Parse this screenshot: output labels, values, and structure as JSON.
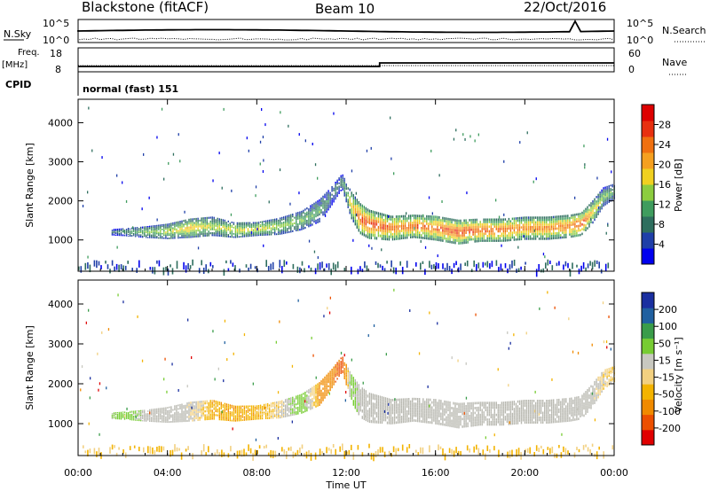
{
  "header": {
    "station_title": "Blackstone (fitACF)",
    "beam": "Beam 10",
    "date": "22/Oct/2016"
  },
  "top_panels": {
    "nsky_label": "N.Sky",
    "nsky_ticks": [
      "10^5",
      "10^0"
    ],
    "nsearch_label": "N.Search",
    "nsearch_ticks": [
      "10^5",
      "10^0"
    ],
    "freq_label": "Freq.",
    "freq_unit": "[MHz]",
    "freq_ticks": [
      "18",
      "8"
    ],
    "nave_label": "Nave",
    "nave_ticks": [
      "60",
      "0"
    ],
    "cpid_label": "CPID",
    "cpid_value": "normal (fast) 151"
  },
  "colors": {
    "power_scale": [
      "#0000ee",
      "#1f3fa8",
      "#2e6e5e",
      "#3f9c5e",
      "#8ccc3f",
      "#f0d020",
      "#f5a020",
      "#f07010",
      "#e83010",
      "#dd0000"
    ],
    "velocity_scale": [
      "#e00000",
      "#ec4f00",
      "#f08a00",
      "#f3b300",
      "#f2d080",
      "#c8c8c0",
      "#77cc33",
      "#3a9c4a",
      "#2060a0",
      "#1a2fa0"
    ],
    "ground_scatter": "#b8b8b0"
  },
  "chart_data": [
    {
      "type": "heatmap",
      "panel": "power",
      "xlabel": "Time UT",
      "ylabel": "Slant Range [km]",
      "x_ticks": [
        "00:00",
        "04:00",
        "08:00",
        "12:00",
        "16:00",
        "20:00",
        "00:00"
      ],
      "y_ticks": [
        "1000",
        "2000",
        "3000",
        "4000"
      ],
      "ylim": [
        200,
        4600
      ],
      "colorbar_label": "Power [dB]",
      "colorbar_ticks": [
        "4",
        "8",
        "12",
        "16",
        "20",
        "24",
        "28"
      ],
      "scatter_band": {
        "hours": [
          1.5,
          2,
          3,
          4,
          5,
          6,
          7,
          8,
          9,
          10,
          10.8,
          11.3,
          11.8,
          12.2,
          12.6,
          13,
          14,
          15,
          16,
          17,
          18,
          19,
          20,
          21,
          22,
          22.5,
          23,
          23.5,
          24
        ],
        "center": [
          1200,
          1200,
          1200,
          1220,
          1300,
          1350,
          1250,
          1280,
          1350,
          1500,
          1750,
          2100,
          2500,
          1900,
          1550,
          1400,
          1300,
          1350,
          1300,
          1200,
          1250,
          1250,
          1300,
          1300,
          1350,
          1400,
          1700,
          2100,
          2250
        ],
        "half_width": [
          80,
          100,
          150,
          200,
          250,
          250,
          200,
          180,
          220,
          250,
          300,
          250,
          200,
          350,
          400,
          380,
          320,
          300,
          320,
          320,
          300,
          300,
          300,
          300,
          300,
          300,
          300,
          250,
          200
        ],
        "peak_power_db": [
          8,
          10,
          14,
          16,
          20,
          16,
          18,
          18,
          16,
          14,
          12,
          8,
          10,
          18,
          28,
          28,
          26,
          26,
          26,
          28,
          26,
          26,
          24,
          24,
          26,
          28,
          20,
          14,
          12
        ]
      }
    },
    {
      "type": "heatmap",
      "panel": "velocity",
      "xlabel": "Time UT",
      "ylabel": "Slant Range [km]",
      "x_ticks": [
        "00:00",
        "04:00",
        "08:00",
        "12:00",
        "16:00",
        "20:00",
        "00:00"
      ],
      "y_ticks": [
        "1000",
        "2000",
        "3000",
        "4000"
      ],
      "ylim": [
        200,
        4600
      ],
      "colorbar_label": "Velocity [m s⁻¹]",
      "colorbar_ticks": [
        "-200",
        "-100",
        "-50",
        "-15",
        "15",
        "50",
        "100",
        "200"
      ],
      "scatter_band": {
        "hours": [
          1.5,
          2,
          3,
          4,
          5,
          6,
          7,
          8,
          9,
          10,
          10.8,
          11.3,
          11.8,
          12.2,
          12.6,
          13,
          14,
          15,
          16,
          17,
          18,
          19,
          20,
          21,
          22,
          22.5,
          23,
          23.5,
          24
        ],
        "velocity_ms": [
          20,
          40,
          0,
          0,
          -5,
          -40,
          -45,
          -40,
          -20,
          40,
          -60,
          -80,
          -120,
          30,
          0,
          0,
          0,
          0,
          0,
          0,
          0,
          0,
          0,
          0,
          0,
          0,
          0,
          -20,
          -30
        ]
      }
    }
  ]
}
